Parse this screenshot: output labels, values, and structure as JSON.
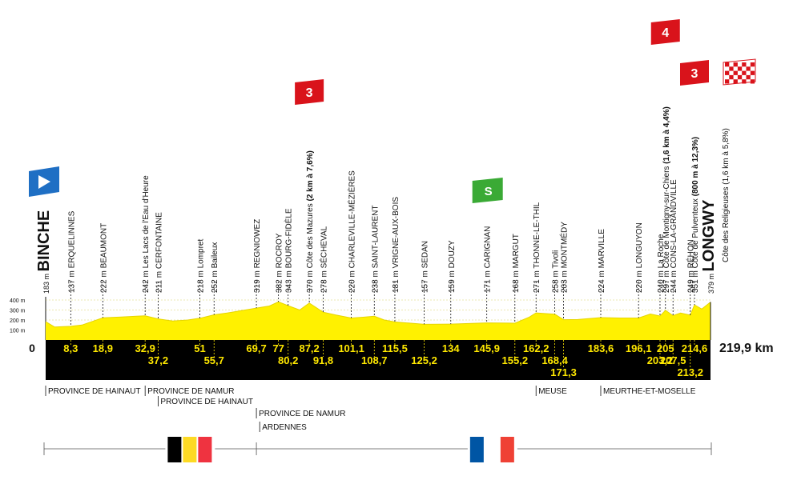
{
  "chart_data": {
    "type": "area",
    "title": "",
    "xlabel": "",
    "ylabel": "",
    "start_label": "0",
    "total_label": "219,9 km",
    "x_range_km": [
      0,
      219.9
    ],
    "y_range_m": [
      0,
      400
    ],
    "y_ticks": [
      {
        "value": 100,
        "label": "100 m"
      },
      {
        "value": 200,
        "label": "200 m"
      },
      {
        "value": 300,
        "label": "300 m"
      },
      {
        "value": 400,
        "label": "400 m"
      }
    ],
    "colors": {
      "profile_fill": "#fff100",
      "profile_line": "#e6d500",
      "band": "#000000",
      "km_text": "#ffe800",
      "kom_flag": "#d9131b",
      "sprint_flag": "#3aaa35",
      "start_flag": "#1f6fc4"
    },
    "profile": [
      {
        "x": 0,
        "y": 183
      },
      {
        "x": 3,
        "y": 130
      },
      {
        "x": 8.3,
        "y": 137
      },
      {
        "x": 12,
        "y": 150
      },
      {
        "x": 18.9,
        "y": 222
      },
      {
        "x": 25,
        "y": 230
      },
      {
        "x": 30,
        "y": 238
      },
      {
        "x": 32.9,
        "y": 242
      },
      {
        "x": 37.2,
        "y": 211
      },
      {
        "x": 42,
        "y": 190
      },
      {
        "x": 47,
        "y": 200
      },
      {
        "x": 51,
        "y": 218
      },
      {
        "x": 55.7,
        "y": 252
      },
      {
        "x": 60,
        "y": 270
      },
      {
        "x": 65,
        "y": 295
      },
      {
        "x": 69.7,
        "y": 319
      },
      {
        "x": 74,
        "y": 340
      },
      {
        "x": 77,
        "y": 382
      },
      {
        "x": 80.2,
        "y": 343
      },
      {
        "x": 84,
        "y": 300
      },
      {
        "x": 87.2,
        "y": 370
      },
      {
        "x": 91.8,
        "y": 278
      },
      {
        "x": 96,
        "y": 250
      },
      {
        "x": 101.1,
        "y": 220
      },
      {
        "x": 105,
        "y": 228
      },
      {
        "x": 108.7,
        "y": 238
      },
      {
        "x": 112,
        "y": 200
      },
      {
        "x": 115.5,
        "y": 181
      },
      {
        "x": 120,
        "y": 170
      },
      {
        "x": 125.2,
        "y": 157
      },
      {
        "x": 130,
        "y": 158
      },
      {
        "x": 134,
        "y": 159
      },
      {
        "x": 140,
        "y": 165
      },
      {
        "x": 145.9,
        "y": 171
      },
      {
        "x": 150,
        "y": 170
      },
      {
        "x": 155.2,
        "y": 168
      },
      {
        "x": 160,
        "y": 230
      },
      {
        "x": 162.2,
        "y": 271
      },
      {
        "x": 165,
        "y": 265
      },
      {
        "x": 168.4,
        "y": 258
      },
      {
        "x": 171.3,
        "y": 203
      },
      {
        "x": 176,
        "y": 205
      },
      {
        "x": 180,
        "y": 215
      },
      {
        "x": 183.6,
        "y": 224
      },
      {
        "x": 190,
        "y": 220
      },
      {
        "x": 196.1,
        "y": 220
      },
      {
        "x": 200,
        "y": 260
      },
      {
        "x": 203.2,
        "y": 240
      },
      {
        "x": 205,
        "y": 297
      },
      {
        "x": 207.5,
        "y": 244
      },
      {
        "x": 210,
        "y": 270
      },
      {
        "x": 213.2,
        "y": 249
      },
      {
        "x": 214.6,
        "y": 351
      },
      {
        "x": 217,
        "y": 310
      },
      {
        "x": 219.9,
        "y": 379
      }
    ],
    "points": [
      {
        "name": "BINCHE",
        "alt": "183 m",
        "km": 0,
        "km_label": "",
        "bold": true,
        "row": 0
      },
      {
        "name": "ERQUELINNES",
        "alt": "137 m",
        "km": 8.3,
        "km_label": "8,3",
        "row": 0
      },
      {
        "name": "BEAUMONT",
        "alt": "222 m",
        "km": 18.9,
        "km_label": "18,9",
        "row": 0
      },
      {
        "name": "Les Lacs de l'Eau d'Heure",
        "alt": "242 m",
        "km": 32.9,
        "km_label": "32,9",
        "row": 0
      },
      {
        "name": "CERFONTAINE",
        "alt": "211 m",
        "km": 37.2,
        "km_label": "37,2",
        "row": 1
      },
      {
        "name": "Lompret",
        "alt": "218 m",
        "km": 51,
        "km_label": "51",
        "row": 0
      },
      {
        "name": "Baileux",
        "alt": "252 m",
        "km": 55.7,
        "km_label": "55,7",
        "row": 1
      },
      {
        "name": "REGNIOWEZ",
        "alt": "319 m",
        "km": 69.7,
        "km_label": "69,7",
        "row": 0
      },
      {
        "name": "ROCROY",
        "alt": "382 m",
        "km": 77,
        "km_label": "77",
        "row": 0
      },
      {
        "name": "BOURG-FIDÈLE",
        "alt": "343 m",
        "km": 80.2,
        "km_label": "80,2",
        "row": 1
      },
      {
        "name": "Côte des Mazures",
        "detail": "(2 km à 7,6%)",
        "alt": "370 m",
        "km": 87.2,
        "km_label": "87,2",
        "row": 0
      },
      {
        "name": "SÉCHEVAL",
        "alt": "278 m",
        "km": 91.8,
        "km_label": "91,8",
        "row": 1
      },
      {
        "name": "CHARLEVILLE-MÉZIÈRES",
        "alt": "220 m",
        "km": 101.1,
        "km_label": "101,1",
        "row": 0
      },
      {
        "name": "SAINT-LAURENT",
        "alt": "238 m",
        "km": 108.7,
        "km_label": "108,7",
        "row": 1
      },
      {
        "name": "VRIGNE-AUX-BOIS",
        "alt": "181 m",
        "km": 115.5,
        "km_label": "115,5",
        "row": 0
      },
      {
        "name": "SEDAN",
        "alt": "157 m",
        "km": 125.2,
        "km_label": "125,2",
        "row": 1
      },
      {
        "name": "DOUZY",
        "alt": "159 m",
        "km": 134,
        "km_label": "134",
        "row": 0
      },
      {
        "name": "CARIGNAN",
        "alt": "171 m",
        "km": 145.9,
        "km_label": "145,9",
        "row": 0
      },
      {
        "name": "MARGUT",
        "alt": "168 m",
        "km": 155.2,
        "km_label": "155,2",
        "row": 1
      },
      {
        "name": "THONNE-LE-THIL",
        "alt": "271 m",
        "km": 162.2,
        "km_label": "162,2",
        "row": 0
      },
      {
        "name": "Tivoli",
        "alt": "258 m",
        "km": 168.4,
        "km_label": "168,4",
        "row": 1
      },
      {
        "name": "MONTMÉDY",
        "alt": "203 m",
        "km": 171.3,
        "km_label": "171,3",
        "row": 2
      },
      {
        "name": "MARVILLE",
        "alt": "224 m",
        "km": 183.6,
        "km_label": "183,6",
        "row": 0
      },
      {
        "name": "LONGUYON",
        "alt": "220 m",
        "km": 196.1,
        "km_label": "196,1",
        "row": 0
      },
      {
        "name": "La Roche",
        "alt": "240 m",
        "km": 203.2,
        "km_label": "203,2",
        "row": 1
      },
      {
        "name": "Côte de Montigny-sur-Chiers",
        "detail": "(1,6 km à 4,4%)",
        "alt": "297 m",
        "km": 205,
        "km_label": "205",
        "row": 0
      },
      {
        "name": "CONS-LA-GRANDVILLE",
        "alt": "244 m",
        "km": 207.5,
        "km_label": "207,5",
        "row": 1
      },
      {
        "name": "RÉHON",
        "alt": "249 m",
        "km": 213.2,
        "km_label": "213,2",
        "row": 2
      },
      {
        "name": "Côte de Pulventeux",
        "detail": "(800 m à 12,3%)",
        "alt": "351 m",
        "km": 214.6,
        "km_label": "214,6",
        "row": 0
      },
      {
        "name": "LONGWY",
        "alt": "379 m",
        "km": 219.9,
        "km_label": "",
        "bold": true,
        "row": 0,
        "sub": "Côte des Religieuses (1,6 km à 5,8%)"
      }
    ],
    "badges": [
      {
        "type": "kom",
        "text": "3",
        "km": 87.2
      },
      {
        "type": "kom",
        "text": "4",
        "km": 205
      },
      {
        "type": "kom",
        "text": "3",
        "km": 214.6
      },
      {
        "type": "sprint",
        "text": "S",
        "km": 145.9
      },
      {
        "type": "start",
        "text": "",
        "km": 0
      },
      {
        "type": "finish",
        "text": "",
        "km": 219.9
      }
    ],
    "regions": [
      {
        "label": "PROVINCE DE HAINAUT",
        "km": 0,
        "row": 0
      },
      {
        "label": "PROVINCE DE NAMUR",
        "km": 32.9,
        "row": 0
      },
      {
        "label": "PROVINCE DE HAINAUT",
        "km": 37.2,
        "row": 1
      },
      {
        "label": "PROVINCE DE NAMUR",
        "km": 69.7,
        "row": 2
      },
      {
        "label": "ARDENNES",
        "km": 70.8,
        "row": 3
      },
      {
        "label": "MEUSE",
        "km": 162.2,
        "row": 0
      },
      {
        "label": "MEURTHE-ET-MOSELLE",
        "km": 183.6,
        "row": 0
      }
    ],
    "countries": [
      {
        "name": "Belgium",
        "colors": [
          "#000000",
          "#fdda24",
          "#ef3340"
        ],
        "km": 47
      },
      {
        "name": "France",
        "colors": [
          "#0055a4",
          "#ffffff",
          "#ef4135"
        ],
        "km": 147
      }
    ],
    "border_km": 69.7
  }
}
